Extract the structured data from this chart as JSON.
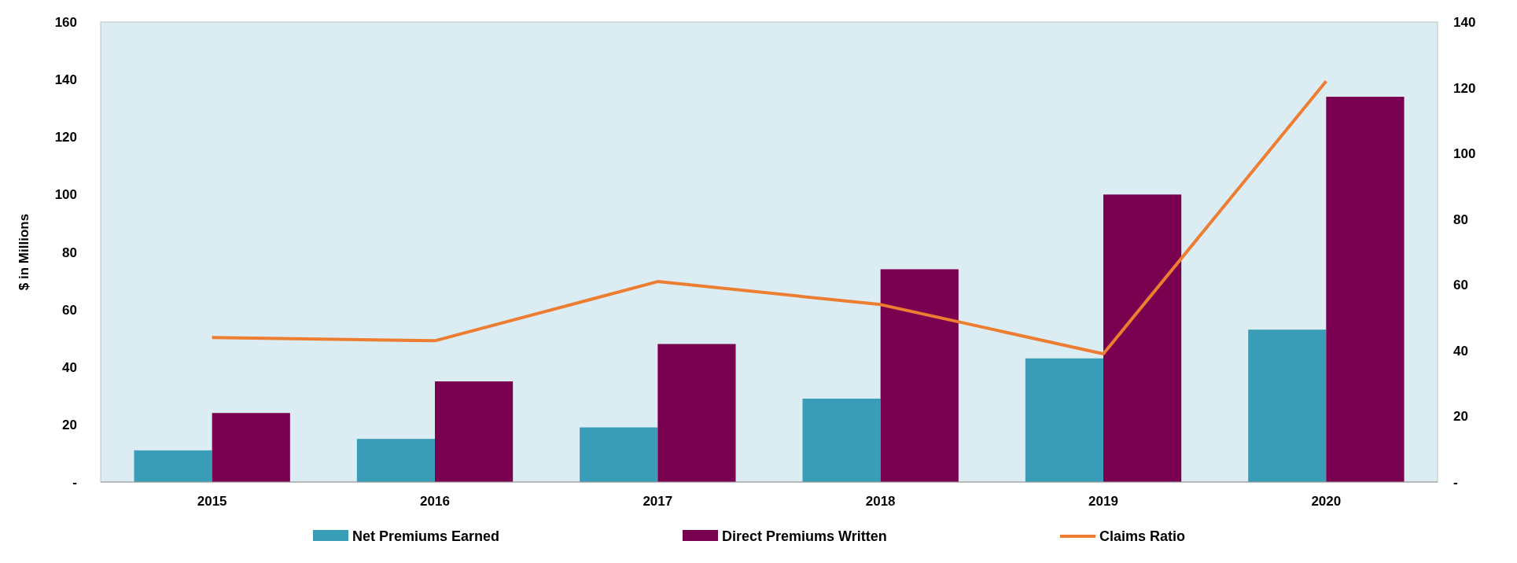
{
  "chart_data": {
    "type": "bar",
    "categories": [
      "2015",
      "2016",
      "2017",
      "2018",
      "2019",
      "2020"
    ],
    "ylabel": "$ in Millions",
    "ylim": [
      0,
      160
    ],
    "yticks": [
      {
        "value": 0,
        "label": "-"
      },
      20,
      40,
      60,
      80,
      100,
      120,
      140,
      160
    ],
    "y2lim": [
      0,
      140
    ],
    "y2ticks": [
      {
        "value": 0,
        "label": "-"
      },
      20,
      40,
      60,
      80,
      100,
      120,
      140
    ],
    "legend": "bottom",
    "grid": false,
    "series": [
      {
        "name": "Net Premiums Earned",
        "color": "#3a9db8",
        "values": [
          11,
          15,
          19,
          29,
          43,
          53
        ]
      },
      {
        "name": "Direct Premiums Written",
        "color": "#7a0050",
        "values": [
          24,
          35,
          48,
          74,
          100,
          134
        ]
      },
      {
        "name": "Claims Ratio",
        "type": "line",
        "axis": "y2",
        "color": "#ed7d31",
        "values": [
          44,
          43,
          61,
          54,
          39,
          122
        ]
      }
    ]
  }
}
